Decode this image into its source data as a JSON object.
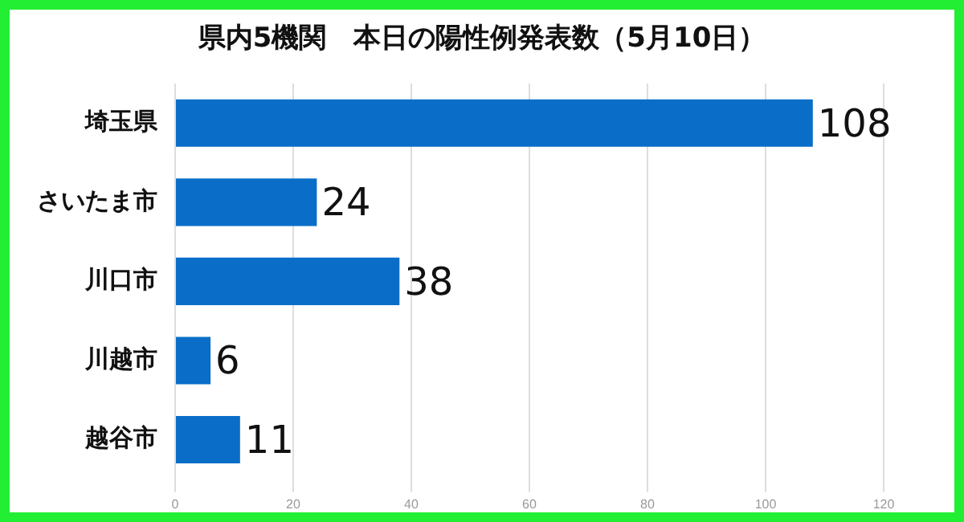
{
  "chart_data": {
    "type": "bar",
    "orientation": "horizontal",
    "title": "県内5機関　本日の陽性例発表数（5月10日）",
    "categories": [
      "埼玉県",
      "さいたま市",
      "川口市",
      "川越市",
      "越谷市"
    ],
    "values": [
      108,
      24,
      38,
      6,
      11
    ],
    "color": "#0a6ec8",
    "xlim": [
      0,
      120
    ],
    "xticks": [
      0,
      20,
      40,
      60,
      80,
      100,
      120
    ],
    "grid": "x",
    "data_labels": true
  }
}
